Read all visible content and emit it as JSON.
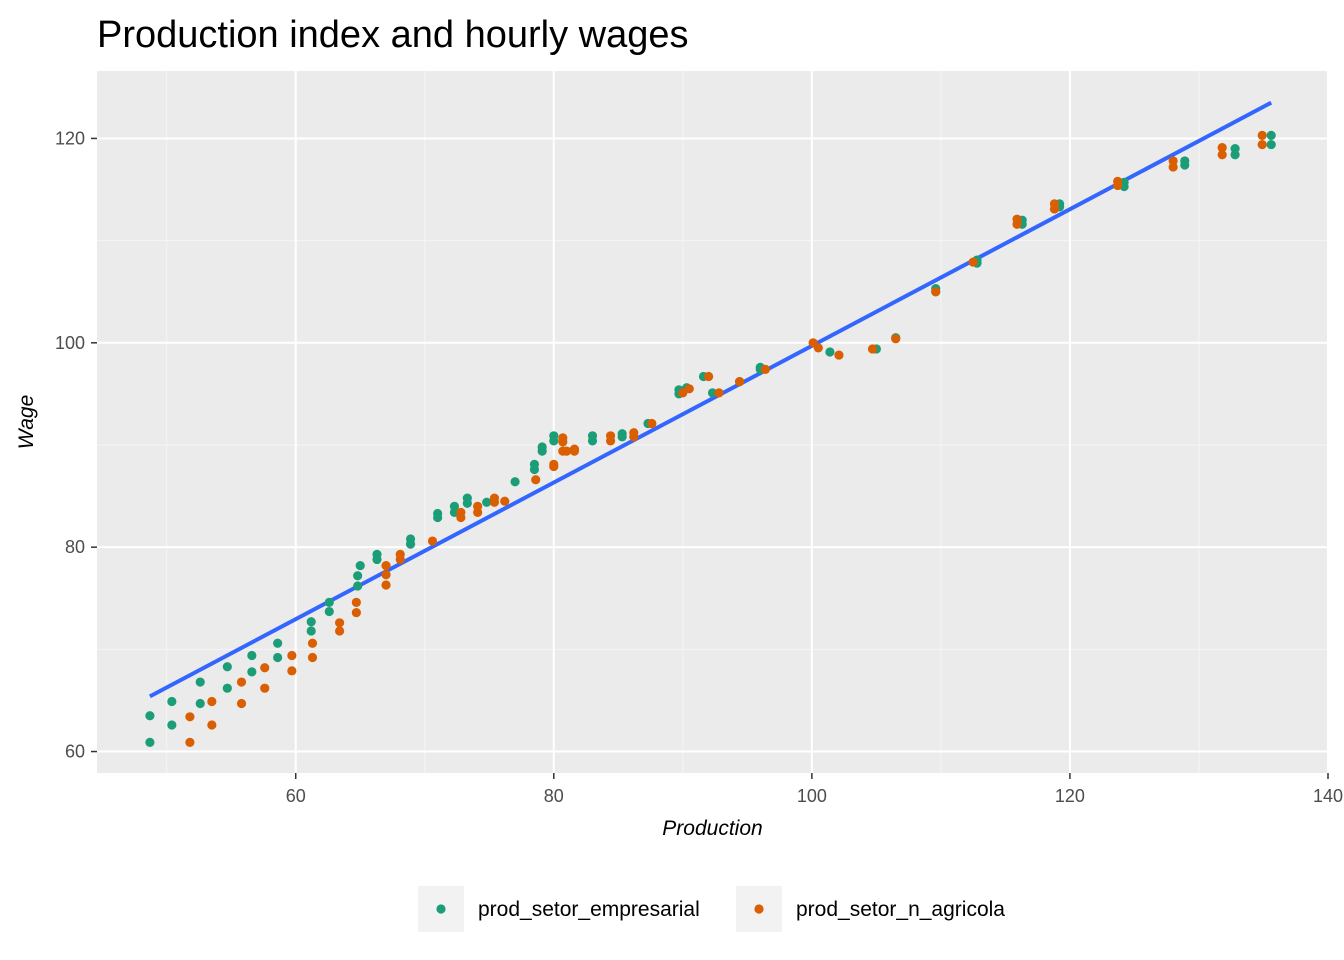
{
  "chart_data": {
    "type": "scatter",
    "title": "Production index and hourly wages",
    "xlabel": "Production",
    "ylabel": "Wage",
    "xlim": [
      44.6,
      140
    ],
    "ylim": [
      57.9,
      126.6
    ],
    "x_ticks": [
      60,
      80,
      100,
      120,
      140
    ],
    "y_ticks": [
      60,
      80,
      100,
      120
    ],
    "grid": true,
    "legend_position": "bottom",
    "series": [
      {
        "name": "prod_setor_empresarial",
        "color": "#1b9e77",
        "points": [
          [
            48.7,
            60.9
          ],
          [
            48.7,
            63.5
          ],
          [
            50.4,
            62.6
          ],
          [
            50.4,
            64.9
          ],
          [
            52.6,
            64.7
          ],
          [
            52.6,
            66.8
          ],
          [
            54.7,
            66.2
          ],
          [
            54.7,
            68.3
          ],
          [
            56.6,
            67.8
          ],
          [
            56.6,
            69.4
          ],
          [
            58.6,
            69.2
          ],
          [
            58.6,
            70.6
          ],
          [
            61.2,
            71.8
          ],
          [
            61.2,
            72.7
          ],
          [
            62.6,
            73.7
          ],
          [
            62.6,
            74.6
          ],
          [
            64.8,
            76.2
          ],
          [
            64.8,
            77.2
          ],
          [
            65.0,
            78.2
          ],
          [
            66.3,
            78.8
          ],
          [
            66.3,
            79.3
          ],
          [
            68.9,
            80.3
          ],
          [
            68.9,
            80.8
          ],
          [
            71.0,
            82.9
          ],
          [
            71.0,
            83.3
          ],
          [
            72.3,
            83.4
          ],
          [
            72.3,
            84.0
          ],
          [
            73.3,
            84.3
          ],
          [
            73.3,
            84.8
          ],
          [
            74.8,
            84.4
          ],
          [
            77.0,
            86.4
          ],
          [
            78.5,
            87.6
          ],
          [
            78.5,
            88.1
          ],
          [
            79.1,
            89.4
          ],
          [
            79.1,
            89.8
          ],
          [
            80.0,
            90.4
          ],
          [
            80.0,
            90.9
          ],
          [
            83.0,
            90.4
          ],
          [
            83.0,
            90.9
          ],
          [
            85.3,
            90.8
          ],
          [
            85.3,
            91.1
          ],
          [
            87.3,
            92.1
          ],
          [
            89.7,
            95.0
          ],
          [
            89.7,
            95.4
          ],
          [
            90.3,
            95.6
          ],
          [
            91.6,
            96.7
          ],
          [
            92.3,
            95.1
          ],
          [
            94.4,
            96.2
          ],
          [
            96.0,
            97.4
          ],
          [
            96.0,
            97.6
          ],
          [
            101.4,
            99.1
          ],
          [
            105.0,
            99.4
          ],
          [
            106.5,
            100.5
          ],
          [
            109.6,
            105.0
          ],
          [
            109.6,
            105.3
          ],
          [
            112.8,
            107.8
          ],
          [
            112.8,
            108.1
          ],
          [
            116.3,
            111.6
          ],
          [
            116.3,
            112.0
          ],
          [
            119.2,
            113.3
          ],
          [
            119.2,
            113.6
          ],
          [
            124.2,
            115.3
          ],
          [
            124.2,
            115.7
          ],
          [
            128.9,
            117.4
          ],
          [
            128.9,
            117.8
          ],
          [
            132.8,
            118.4
          ],
          [
            132.8,
            119.0
          ],
          [
            135.6,
            119.4
          ],
          [
            135.6,
            120.3
          ]
        ]
      },
      {
        "name": "prod_setor_n_agricola",
        "color": "#d95f02",
        "points": [
          [
            51.8,
            60.9
          ],
          [
            51.8,
            63.4
          ],
          [
            53.5,
            62.6
          ],
          [
            53.5,
            64.9
          ],
          [
            55.8,
            64.7
          ],
          [
            55.8,
            66.8
          ],
          [
            57.6,
            66.2
          ],
          [
            57.6,
            68.2
          ],
          [
            59.7,
            67.9
          ],
          [
            59.7,
            69.4
          ],
          [
            61.3,
            69.2
          ],
          [
            61.3,
            70.6
          ],
          [
            63.4,
            71.8
          ],
          [
            63.4,
            72.6
          ],
          [
            64.7,
            73.6
          ],
          [
            64.7,
            74.6
          ],
          [
            67.0,
            76.3
          ],
          [
            67.0,
            77.3
          ],
          [
            67.0,
            78.2
          ],
          [
            68.1,
            78.8
          ],
          [
            68.1,
            79.3
          ],
          [
            70.6,
            80.6
          ],
          [
            72.8,
            82.9
          ],
          [
            72.8,
            83.4
          ],
          [
            74.1,
            83.4
          ],
          [
            74.1,
            84.0
          ],
          [
            75.4,
            84.4
          ],
          [
            75.4,
            84.8
          ],
          [
            76.2,
            84.5
          ],
          [
            78.6,
            86.6
          ],
          [
            80.0,
            87.9
          ],
          [
            80.0,
            88.1
          ],
          [
            80.7,
            89.4
          ],
          [
            80.7,
            90.3
          ],
          [
            80.7,
            90.7
          ],
          [
            81.0,
            89.4
          ],
          [
            81.6,
            89.6
          ],
          [
            81.6,
            89.4
          ],
          [
            84.4,
            90.4
          ],
          [
            84.4,
            90.9
          ],
          [
            86.2,
            90.8
          ],
          [
            86.2,
            91.2
          ],
          [
            87.6,
            92.1
          ],
          [
            90.0,
            95.1
          ],
          [
            90.5,
            95.5
          ],
          [
            92.0,
            96.7
          ],
          [
            92.8,
            95.1
          ],
          [
            94.4,
            96.2
          ],
          [
            96.4,
            97.4
          ],
          [
            100.1,
            100.0
          ],
          [
            100.5,
            99.5
          ],
          [
            102.1,
            98.8
          ],
          [
            104.7,
            99.4
          ],
          [
            106.5,
            100.4
          ],
          [
            109.6,
            105.0
          ],
          [
            112.5,
            107.9
          ],
          [
            115.9,
            111.6
          ],
          [
            115.9,
            112.1
          ],
          [
            118.8,
            113.1
          ],
          [
            118.8,
            113.6
          ],
          [
            123.7,
            115.4
          ],
          [
            123.7,
            115.8
          ],
          [
            128.0,
            117.2
          ],
          [
            128.0,
            117.8
          ],
          [
            131.8,
            118.4
          ],
          [
            131.8,
            119.1
          ],
          [
            134.9,
            119.4
          ],
          [
            134.9,
            120.3
          ]
        ]
      }
    ],
    "trend_line": {
      "color": "#3366ff",
      "points": [
        [
          48.7,
          65.4
        ],
        [
          135.6,
          123.5
        ]
      ]
    }
  }
}
